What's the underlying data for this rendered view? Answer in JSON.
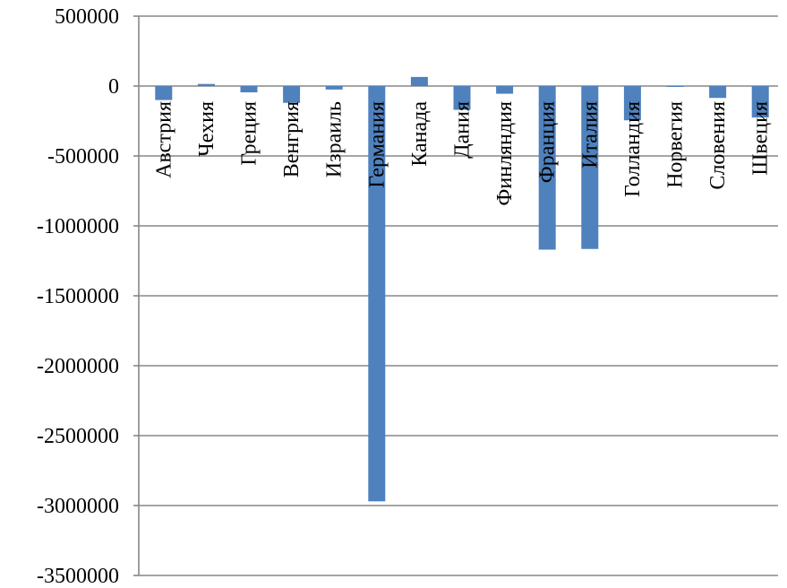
{
  "chart_data": {
    "type": "bar",
    "title": "",
    "xlabel": "",
    "ylabel": "",
    "ylim": [
      -3500000,
      500000
    ],
    "yticks": [
      500000,
      0,
      -500000,
      -1000000,
      -1500000,
      -2000000,
      -2500000,
      -3000000,
      -3500000
    ],
    "grid": true,
    "bar_color": "#4f81bd",
    "categories": [
      "Австрия",
      "Чехия",
      "Греция",
      "Венгрия",
      "Израиль",
      "Германия",
      "Канада",
      "Дания",
      "Финляндия",
      "Франция",
      "Италия",
      "Голландия",
      "Норвегия",
      "Словения",
      "Швеция"
    ],
    "values": [
      -100000,
      15000,
      -45000,
      -120000,
      -25000,
      -2970000,
      65000,
      -170000,
      -55000,
      -1170000,
      -1165000,
      -245000,
      -5000,
      -85000,
      -225000
    ]
  }
}
